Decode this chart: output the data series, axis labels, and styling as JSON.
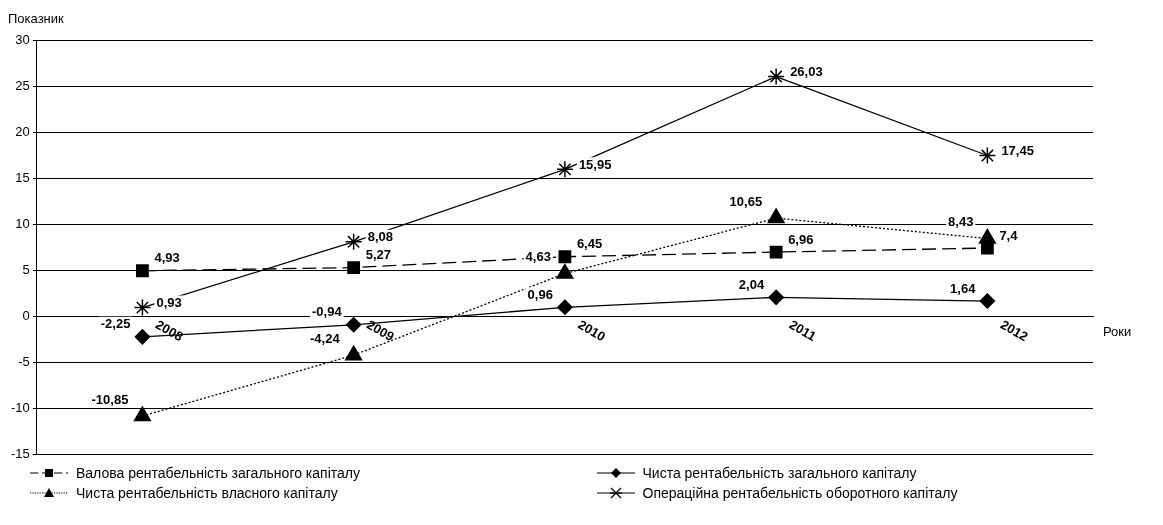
{
  "chart_data": {
    "type": "line",
    "ylabel": "Показник",
    "xlabel": "Роки",
    "categories": [
      "2008",
      "2009",
      "2010",
      "2011",
      "2012"
    ],
    "ylim": [
      -15,
      30
    ],
    "yticks": [
      -15,
      -10,
      -5,
      0,
      5,
      10,
      15,
      20,
      25,
      30
    ],
    "grid": "y",
    "legend": "bottom",
    "series": [
      {
        "name": "Валова рентабельність загального капіталу",
        "color": "#000000",
        "marker": "square",
        "line_style": "dashed",
        "values": [
          4.93,
          5.27,
          6.45,
          6.96,
          7.4
        ],
        "value_labels": [
          "4,93",
          "5,27",
          "6,45",
          "6,96",
          "7,4"
        ]
      },
      {
        "name": "Чиста рентабельність загального капіталу",
        "color": "#000000",
        "marker": "diamond",
        "line_style": "solid",
        "values": [
          -2.25,
          -0.94,
          0.96,
          2.04,
          1.64
        ],
        "value_labels": [
          "-2,25",
          "-0,94",
          "0,96",
          "2,04",
          "1,64"
        ]
      },
      {
        "name": "Чиста рентабельність власного капіталу",
        "color": "#000000",
        "marker": "triangle",
        "line_style": "dotted",
        "values": [
          -10.85,
          -4.24,
          4.63,
          10.65,
          8.43
        ],
        "value_labels": [
          "-10,85",
          "-4,24",
          "4,63",
          "10,65",
          "8,43"
        ]
      },
      {
        "name": "Операційна рентабельність оборотного капіталу",
        "color": "#000000",
        "marker": "cross",
        "line_style": "solid",
        "values": [
          0.93,
          8.08,
          15.95,
          26.03,
          17.45
        ],
        "value_labels": [
          "0,93",
          "8,08",
          "15,95",
          "26,03",
          "17,45"
        ]
      }
    ]
  }
}
